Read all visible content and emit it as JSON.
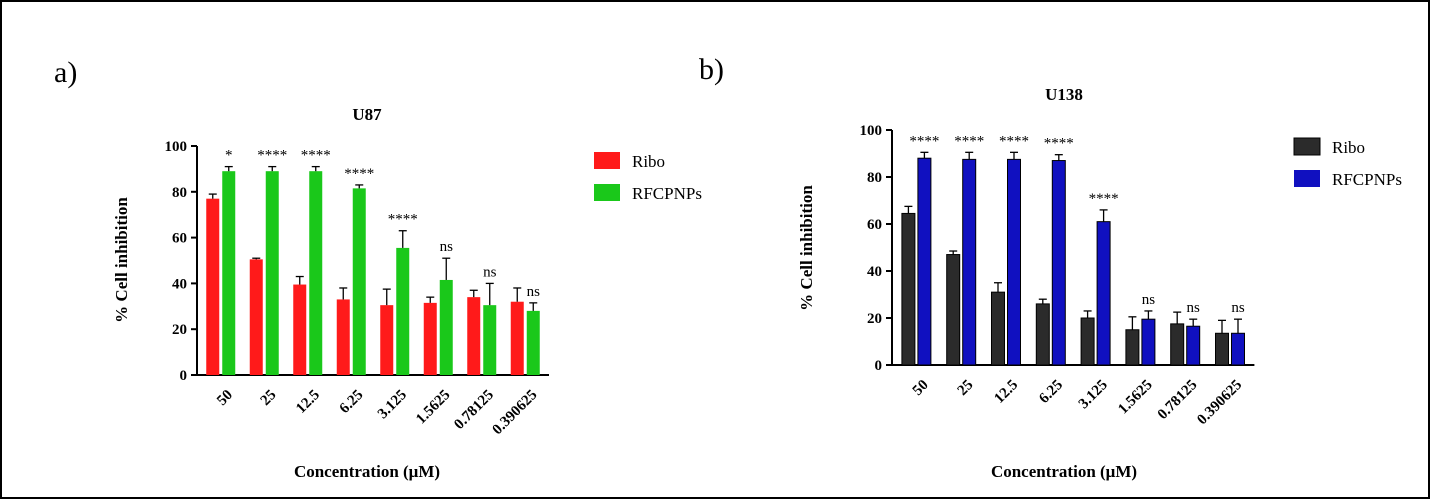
{
  "chart_data": [
    {
      "panel": "a)",
      "type": "bar",
      "title": "U87",
      "xlabel": "Concentration (μM)",
      "ylabel": "% Cell inhibition",
      "ylim": [
        0,
        100
      ],
      "yticks": [
        0,
        20,
        40,
        60,
        80,
        100
      ],
      "categories": [
        "50",
        "25",
        "12.5",
        "6.25",
        "3.125",
        "1.5625",
        "0.78125",
        "0.390625"
      ],
      "series": [
        {
          "name": "Ribo",
          "color": "#ff1a1a",
          "values": [
            77,
            50.5,
            39.5,
            33,
            30.5,
            31.5,
            34,
            32
          ],
          "errors": [
            2,
            0.5,
            3.5,
            5,
            7,
            2.5,
            3,
            6
          ]
        },
        {
          "name": "RFCPNPs",
          "color": "#1ac81a",
          "values": [
            89,
            89,
            89,
            81.5,
            55.5,
            41.5,
            30.5,
            28
          ],
          "errors": [
            2,
            2,
            2,
            1.5,
            7.5,
            9.5,
            9.5,
            3.5
          ]
        }
      ],
      "annotations": [
        "*",
        "****",
        "****",
        "****",
        "****",
        "ns",
        "ns",
        "ns"
      ],
      "legend_position": "right"
    },
    {
      "panel": "b)",
      "type": "bar",
      "title": "U138",
      "xlabel": "Concentration (μM)",
      "ylabel": "% Cell inhibition",
      "ylim": [
        0,
        100
      ],
      "yticks": [
        0,
        20,
        40,
        60,
        80,
        100
      ],
      "categories": [
        "50",
        "25",
        "12.5",
        "6.25",
        "3.125",
        "1.5625",
        "0.78125",
        "0.390625"
      ],
      "series": [
        {
          "name": "Ribo",
          "color": "#2b2b2b",
          "values": [
            64.5,
            47,
            31,
            26,
            20,
            15,
            17.5,
            13.5
          ],
          "errors": [
            3,
            1.5,
            4,
            2,
            3,
            5.5,
            5,
            5.5
          ]
        },
        {
          "name": "RFCPNPs",
          "color": "#1010c0",
          "values": [
            88,
            87.5,
            87.5,
            87,
            61,
            19.5,
            16.5,
            13.5
          ],
          "errors": [
            2.5,
            3,
            3,
            2.5,
            5,
            3.5,
            3,
            6
          ]
        }
      ],
      "annotations": [
        "****",
        "****",
        "****",
        "****",
        "****",
        "ns",
        "ns",
        "ns"
      ],
      "legend_position": "right"
    }
  ]
}
